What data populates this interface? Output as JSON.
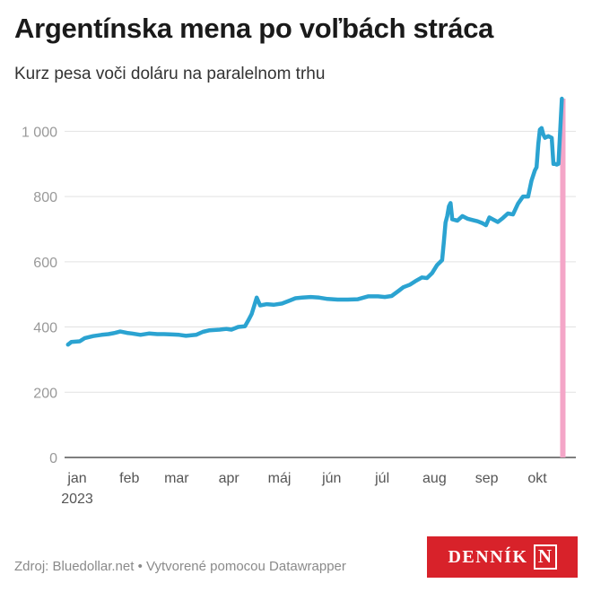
{
  "header": {
    "title": "Argentínska mena po voľbách stráca",
    "subtitle": "Kurz pesa voči doláru na paralelnom trhu"
  },
  "footer": {
    "source": "Zdroj: Bluedollar.net • Vytvorené pomocou Datawrapper"
  },
  "logo": {
    "text": "DENNÍK",
    "mark": "N"
  },
  "colors": {
    "line": "#2ba3d1",
    "highlight": "#f4a6c8",
    "grid": "#e2e2e2",
    "axis_text": "#999999"
  },
  "chart_data": {
    "type": "line",
    "title": "Argentínska mena po voľbách stráca",
    "subtitle": "Kurz pesa voči doláru na paralelnom trhu",
    "ylim": [
      0,
      1100
    ],
    "yticks": [
      0,
      200,
      400,
      600,
      800,
      1000
    ],
    "ytick_labels": [
      "0",
      "200",
      "400",
      "600",
      "800",
      "1 000"
    ],
    "x_domain": [
      "2023-01-01",
      "2023-10-26"
    ],
    "x_ticks": [
      {
        "date": "2023-01-01",
        "label": "jan",
        "year": "2023"
      },
      {
        "date": "2023-02-01",
        "label": "feb"
      },
      {
        "date": "2023-03-01",
        "label": "mar"
      },
      {
        "date": "2023-04-01",
        "label": "apr"
      },
      {
        "date": "2023-05-01",
        "label": "máj"
      },
      {
        "date": "2023-06-01",
        "label": "jún"
      },
      {
        "date": "2023-07-01",
        "label": "júl"
      },
      {
        "date": "2023-08-01",
        "label": "aug"
      },
      {
        "date": "2023-09-01",
        "label": "sep"
      },
      {
        "date": "2023-10-01",
        "label": "okt"
      }
    ],
    "highlight_band": {
      "from": "2023-10-22",
      "to": "2023-10-24"
    },
    "grid": true,
    "series": [
      {
        "points": [
          [
            "2023-01-03",
            346
          ],
          [
            "2023-01-05",
            354
          ],
          [
            "2023-01-10",
            356
          ],
          [
            "2023-01-13",
            366
          ],
          [
            "2023-01-18",
            372
          ],
          [
            "2023-01-23",
            376
          ],
          [
            "2023-01-27",
            378
          ],
          [
            "2023-01-31",
            382
          ],
          [
            "2023-02-03",
            386
          ],
          [
            "2023-02-07",
            382
          ],
          [
            "2023-02-10",
            380
          ],
          [
            "2023-02-15",
            376
          ],
          [
            "2023-02-20",
            380
          ],
          [
            "2023-02-25",
            378
          ],
          [
            "2023-03-01",
            378
          ],
          [
            "2023-03-06",
            377
          ],
          [
            "2023-03-10",
            376
          ],
          [
            "2023-03-14",
            373
          ],
          [
            "2023-03-20",
            376
          ],
          [
            "2023-03-24",
            385
          ],
          [
            "2023-03-28",
            390
          ],
          [
            "2023-04-03",
            392
          ],
          [
            "2023-04-07",
            394
          ],
          [
            "2023-04-10",
            392
          ],
          [
            "2023-04-14",
            400
          ],
          [
            "2023-04-18",
            402
          ],
          [
            "2023-04-20",
            420
          ],
          [
            "2023-04-22",
            440
          ],
          [
            "2023-04-25",
            490
          ],
          [
            "2023-04-27",
            466
          ],
          [
            "2023-05-01",
            470
          ],
          [
            "2023-05-05",
            468
          ],
          [
            "2023-05-10",
            472
          ],
          [
            "2023-05-14",
            480
          ],
          [
            "2023-05-18",
            488
          ],
          [
            "2023-05-22",
            490
          ],
          [
            "2023-05-27",
            492
          ],
          [
            "2023-06-01",
            490
          ],
          [
            "2023-06-06",
            486
          ],
          [
            "2023-06-12",
            484
          ],
          [
            "2023-06-18",
            484
          ],
          [
            "2023-06-24",
            485
          ],
          [
            "2023-06-30",
            494
          ],
          [
            "2023-07-06",
            494
          ],
          [
            "2023-07-10",
            492
          ],
          [
            "2023-07-14",
            495
          ],
          [
            "2023-07-18",
            510
          ],
          [
            "2023-07-21",
            522
          ],
          [
            "2023-07-25",
            530
          ],
          [
            "2023-07-28",
            540
          ],
          [
            "2023-08-01",
            552
          ],
          [
            "2023-08-04",
            550
          ],
          [
            "2023-08-07",
            565
          ],
          [
            "2023-08-10",
            590
          ],
          [
            "2023-08-13",
            605
          ],
          [
            "2023-08-14",
            660
          ],
          [
            "2023-08-15",
            720
          ],
          [
            "2023-08-16",
            740
          ],
          [
            "2023-08-17",
            770
          ],
          [
            "2023-08-18",
            780
          ],
          [
            "2023-08-19",
            730
          ],
          [
            "2023-08-22",
            726
          ],
          [
            "2023-08-25",
            740
          ],
          [
            "2023-08-28",
            732
          ],
          [
            "2023-08-31",
            728
          ],
          [
            "2023-09-03",
            724
          ],
          [
            "2023-09-06",
            718
          ],
          [
            "2023-09-08",
            712
          ],
          [
            "2023-09-10",
            736
          ],
          [
            "2023-09-12",
            730
          ],
          [
            "2023-09-15",
            722
          ],
          [
            "2023-09-18",
            734
          ],
          [
            "2023-09-21",
            748
          ],
          [
            "2023-09-24",
            745
          ],
          [
            "2023-09-27",
            778
          ],
          [
            "2023-09-30",
            800
          ],
          [
            "2023-10-03",
            800
          ],
          [
            "2023-10-05",
            848
          ],
          [
            "2023-10-07",
            880
          ],
          [
            "2023-10-08",
            890
          ],
          [
            "2023-10-09",
            960
          ],
          [
            "2023-10-10",
            1005
          ],
          [
            "2023-10-11",
            1010
          ],
          [
            "2023-10-12",
            990
          ],
          [
            "2023-10-13",
            980
          ],
          [
            "2023-10-15",
            985
          ],
          [
            "2023-10-17",
            980
          ],
          [
            "2023-10-18",
            900
          ],
          [
            "2023-10-19",
            900
          ],
          [
            "2023-10-20",
            898
          ],
          [
            "2023-10-21",
            900
          ],
          [
            "2023-10-22",
            1000
          ],
          [
            "2023-10-23",
            1100
          ]
        ]
      }
    ]
  }
}
